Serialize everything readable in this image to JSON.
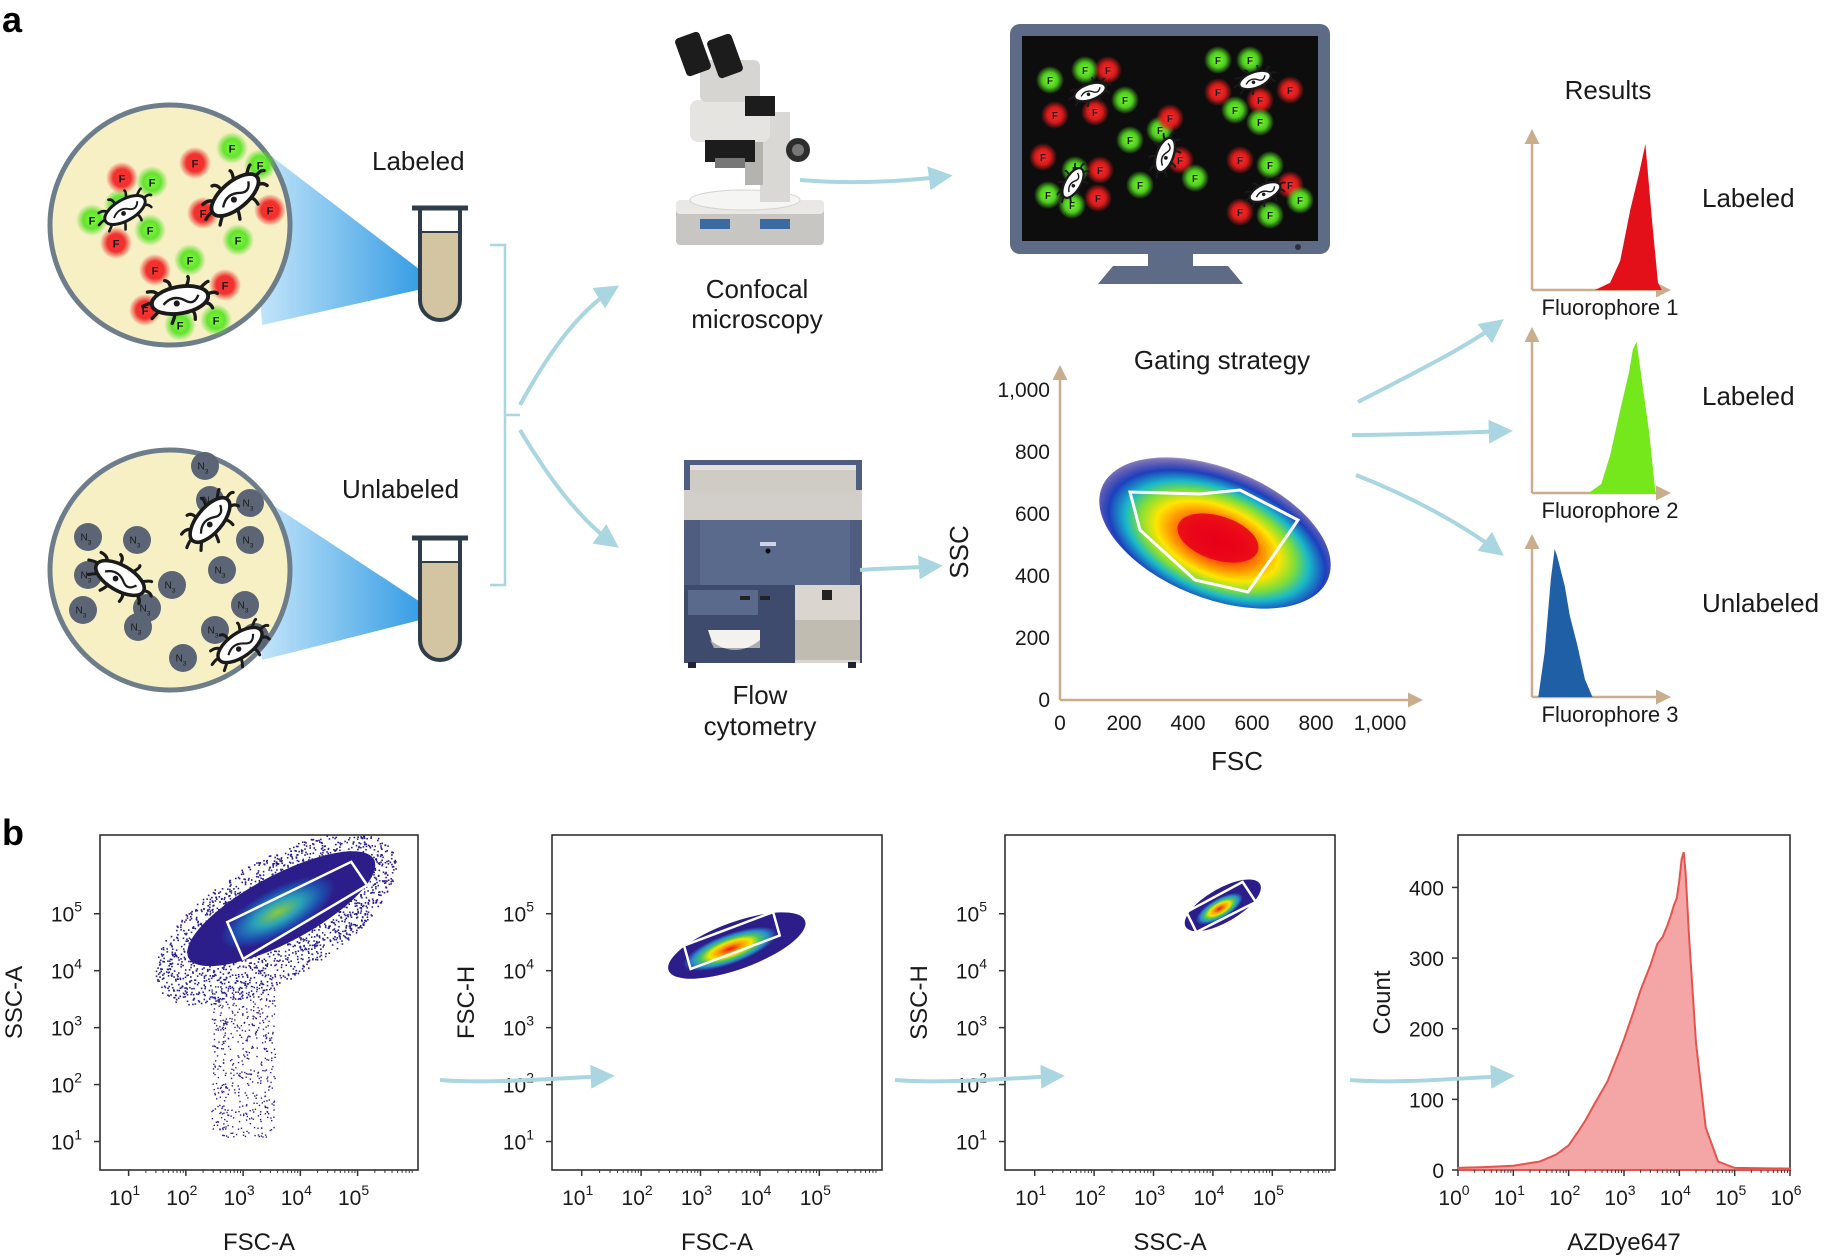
{
  "panels": {
    "a": "a",
    "b": "b"
  },
  "panel_a": {
    "labeled": "Labeled",
    "unlabeled": "Unlabeled",
    "bead_f": "F",
    "bead_n": "N",
    "bead_n_sub": "3",
    "confocal_line1": "Confocal",
    "confocal_line2": "microscopy",
    "flow_line1": "Flow",
    "flow_line2": "cytometry",
    "gating_title": "Gating strategy",
    "gating_xlabel": "FSC",
    "gating_ylabel": "SSC",
    "gating_xticks": [
      "0",
      "200",
      "400",
      "600",
      "800",
      "1,000"
    ],
    "gating_yticks": [
      "0",
      "200",
      "400",
      "600",
      "800",
      "1,000"
    ],
    "results_title": "Results",
    "results": [
      {
        "fluorophore": "Fluorophore 1",
        "status": "Labeled",
        "color": "#e3101a"
      },
      {
        "fluorophore": "Fluorophore 2",
        "status": "Labeled",
        "color": "#74e81a"
      },
      {
        "fluorophore": "Fluorophore 3",
        "status": "Unlabeled",
        "color": "#1f5fa6"
      }
    ]
  },
  "chart_data": [
    {
      "type": "scatter",
      "xlabel": "FSC-A",
      "ylabel": "SSC-A",
      "x_scale": "log",
      "y_scale": "log",
      "xticks": [
        "10",
        "10",
        "10",
        "10",
        "10"
      ],
      "xtick_exp": [
        "1",
        "2",
        "3",
        "4",
        "5"
      ],
      "yticks": [
        "10",
        "10",
        "10",
        "10",
        "10"
      ],
      "ytick_exp": [
        "1",
        "2",
        "3",
        "4",
        "5"
      ],
      "gate": "tilted rectangle"
    },
    {
      "type": "scatter",
      "xlabel": "FSC-A",
      "ylabel": "FSC-H",
      "x_scale": "log",
      "y_scale": "log",
      "xticks": [
        "10",
        "10",
        "10",
        "10",
        "10"
      ],
      "xtick_exp": [
        "1",
        "2",
        "3",
        "4",
        "5"
      ],
      "yticks": [
        "10",
        "10",
        "10",
        "10",
        "10"
      ],
      "ytick_exp": [
        "1",
        "2",
        "3",
        "4",
        "5"
      ],
      "gate": "tilted rectangle"
    },
    {
      "type": "scatter",
      "xlabel": "SSC-A",
      "ylabel": "SSC-H",
      "x_scale": "log",
      "y_scale": "log",
      "xticks": [
        "10",
        "10",
        "10",
        "10",
        "10"
      ],
      "xtick_exp": [
        "1",
        "2",
        "3",
        "4",
        "5"
      ],
      "yticks": [
        "10",
        "10",
        "10",
        "10",
        "10"
      ],
      "ytick_exp": [
        "1",
        "2",
        "3",
        "4",
        "5"
      ],
      "gate": "tilted rectangle"
    },
    {
      "type": "area",
      "xlabel": "AZDye647",
      "ylabel": "Count",
      "x_scale": "log",
      "xticks": [
        "10",
        "10",
        "10",
        "10",
        "10",
        "10",
        "10"
      ],
      "xtick_exp": [
        "0",
        "1",
        "2",
        "3",
        "4",
        "5",
        "6"
      ],
      "yticks": [
        "0",
        "100",
        "200",
        "300",
        "400"
      ],
      "ylim": [
        0,
        460
      ],
      "series": [
        {
          "color": "#f4a6a6",
          "x": [
            1,
            3,
            10,
            30,
            60,
            100,
            150,
            200,
            300,
            500,
            800,
            1000,
            1500,
            2000,
            3000,
            4000,
            5000,
            6000,
            7000,
            8000,
            9000,
            10000,
            11000,
            12000,
            13000,
            15000,
            20000,
            30000,
            50000,
            100000,
            1000000
          ],
          "y": [
            3,
            4,
            6,
            12,
            22,
            35,
            55,
            70,
            95,
            125,
            165,
            185,
            225,
            255,
            290,
            320,
            330,
            345,
            360,
            375,
            385,
            410,
            440,
            450,
            420,
            330,
            180,
            60,
            12,
            3,
            2
          ]
        }
      ]
    }
  ]
}
